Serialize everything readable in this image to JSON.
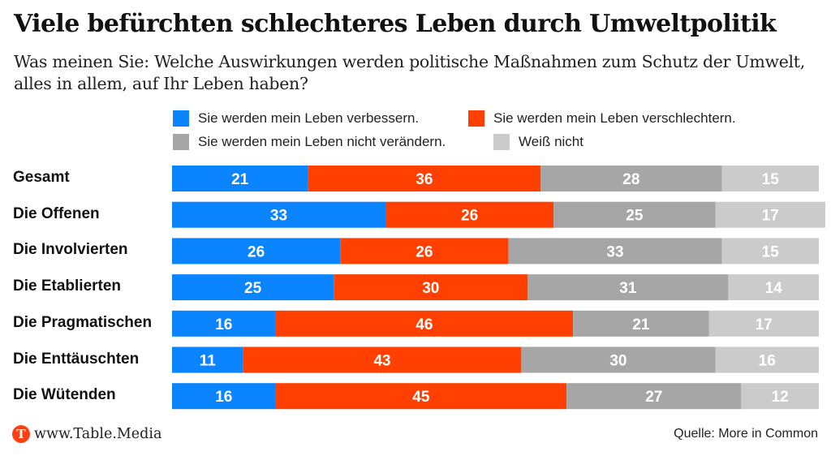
{
  "header": {
    "title": "Viele befürchten schlechteres Leben durch Umweltpolitik",
    "subtitle": "Was meinen Sie: Welche Auswirkungen werden politische Maßnahmen zum Schutz der Umwelt, alles in allem, auf Ihr Leben haben?"
  },
  "footer": {
    "logo_letter": "T",
    "site": "www.Table.Media",
    "source": "Quelle: More in Common"
  },
  "colors": {
    "verbessern": "#0a84ff",
    "verschlechtern": "#ff4000",
    "nicht_veraendern": "#a6a6a6",
    "weiss_nicht": "#cbcbcb",
    "logo": "#ff4013"
  },
  "chart_data": {
    "type": "bar",
    "orientation": "horizontal",
    "stacked": true,
    "title": "Viele befürchten schlechteres Leben durch Umweltpolitik",
    "subtitle": "Was meinen Sie: Welche Auswirkungen werden politische Maßnahmen zum Schutz der Umwelt, alles in allem, auf Ihr Leben haben?",
    "xlabel": "",
    "ylabel": "",
    "xlim": [
      0,
      100
    ],
    "grid": false,
    "legend_position": "top",
    "categories": [
      "Gesamt",
      "Die Offenen",
      "Die Involvierten",
      "Die Etablierten",
      "Die Pragmatischen",
      "Die Enttäuschten",
      "Die Wütenden"
    ],
    "series": [
      {
        "name": "Sie werden mein Leben verbessern.",
        "color": "#0a84ff",
        "values": [
          21,
          33,
          26,
          25,
          16,
          11,
          16
        ]
      },
      {
        "name": "Sie werden mein Leben verschlechtern.",
        "color": "#ff4000",
        "values": [
          36,
          26,
          26,
          30,
          46,
          43,
          45
        ]
      },
      {
        "name": "Sie werden mein Leben nicht verändern.",
        "color": "#a6a6a6",
        "values": [
          28,
          25,
          33,
          31,
          21,
          30,
          27
        ]
      },
      {
        "name": "Weiß nicht",
        "color": "#cbcbcb",
        "values": [
          15,
          17,
          15,
          14,
          17,
          16,
          12
        ]
      }
    ],
    "source": "Quelle: More in Common"
  }
}
